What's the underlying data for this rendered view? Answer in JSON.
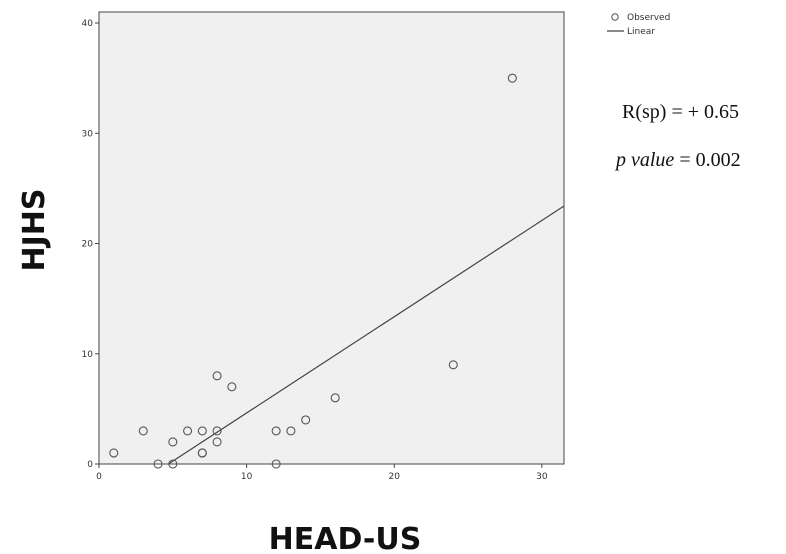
{
  "chart_data": {
    "type": "scatter",
    "xlabel": "HEAD-US",
    "ylabel": "HJHS",
    "xlim": [
      0,
      31.5
    ],
    "ylim": [
      0,
      41
    ],
    "x_ticks": [
      0,
      10,
      20,
      30
    ],
    "y_ticks": [
      0,
      10,
      20,
      30,
      40
    ],
    "grid": false,
    "legend_position": "top-right outside",
    "series": [
      {
        "name": "Observed",
        "marker": "open-circle",
        "points": [
          [
            1,
            1
          ],
          [
            3,
            3
          ],
          [
            4,
            0
          ],
          [
            5,
            2
          ],
          [
            5,
            0
          ],
          [
            6,
            3
          ],
          [
            7,
            3
          ],
          [
            7,
            1
          ],
          [
            7,
            1
          ],
          [
            8,
            8
          ],
          [
            8,
            3
          ],
          [
            8,
            2
          ],
          [
            9,
            7
          ],
          [
            12,
            3
          ],
          [
            12,
            0
          ],
          [
            13,
            3
          ],
          [
            14,
            4
          ],
          [
            16,
            6
          ],
          [
            24,
            9
          ],
          [
            28,
            35
          ]
        ]
      },
      {
        "name": "Linear",
        "type": "line",
        "points": [
          [
            4.7,
            0
          ],
          [
            31.5,
            23.4
          ]
        ]
      }
    ],
    "annotations": {
      "r_text": "R(sp) = + 0.65",
      "p_label": "p value",
      "p_rest": " = 0.002"
    },
    "colors": {
      "plot_background": "#f0f0f0",
      "marker": "#555555",
      "line": "#444444"
    }
  }
}
